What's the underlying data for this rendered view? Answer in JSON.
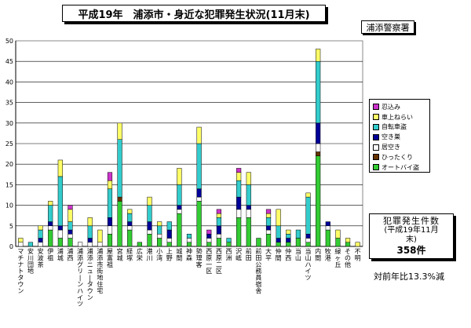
{
  "title": "平成19年　浦添市・身近な犯罪発生状況(11月末)",
  "police_label": "浦添警察署",
  "count_box": {
    "line1": "犯罪発生件数",
    "line2": "(平成19年11月",
    "line3": "末)",
    "line4": "358件"
  },
  "yoy": "対前年比13.3%減",
  "colors": {
    "忍込み": "#cc33cc",
    "車上ねらい": "#ffff66",
    "自転車盗": "#33cccc",
    "空き巣": "#000099",
    "居空き": "#ffffff",
    "ひったくり": "#663300",
    "オートバイ盗": "#33cc33"
  },
  "chart_data": {
    "type": "bar",
    "stacked": true,
    "ylim": [
      0,
      50
    ],
    "yticks": [
      0,
      5,
      10,
      15,
      20,
      25,
      30,
      35,
      40,
      45,
      50
    ],
    "grid": true,
    "legend_position": "right",
    "categories": [
      "マチナトタウン",
      "安川団地",
      "安波茶",
      "伊祖",
      "浦城",
      "浦西",
      "浦添グリーンハイツ",
      "浦添ニュータウン",
      "浦添市街地住宅",
      "屋富祖",
      "宮城",
      "経塚",
      "広栄",
      "港川",
      "小湾",
      "上野",
      "城間",
      "神森",
      "勢理客",
      "西原一区",
      "西原二区",
      "西洲",
      "沢岻",
      "前田",
      "前田公務員宿舎",
      "大平",
      "仲間",
      "仲西",
      "当山",
      "当山ハイツ",
      "内間",
      "牧港",
      "緑ヶ丘",
      "その他",
      "不明"
    ],
    "series": [
      {
        "name": "オートバイ盗",
        "values": [
          0,
          0,
          0,
          4,
          2,
          2,
          0,
          0,
          0,
          3,
          11,
          4,
          1,
          3,
          2,
          1,
          8,
          1,
          11,
          1,
          2,
          1,
          7,
          7,
          2,
          3,
          1,
          1,
          2,
          1,
          22,
          4,
          2,
          1,
          0
        ]
      },
      {
        "name": "ひったくり",
        "values": [
          0,
          0,
          0,
          0,
          0,
          0,
          0,
          0,
          0,
          0,
          1,
          0,
          0,
          0,
          0,
          0,
          0,
          0,
          0,
          0,
          0,
          0,
          0,
          0,
          0,
          0,
          0,
          0,
          0,
          0,
          1,
          0,
          0,
          0,
          0
        ]
      },
      {
        "name": "居空き",
        "values": [
          1,
          0,
          1,
          1,
          2,
          1,
          1,
          1,
          1,
          2,
          0,
          1,
          0,
          1,
          1,
          1,
          1,
          1,
          1,
          1,
          1,
          0,
          2,
          2,
          0,
          1,
          0,
          0,
          0,
          1,
          2,
          1,
          0,
          0,
          0
        ]
      },
      {
        "name": "空き巣",
        "values": [
          0,
          0,
          1,
          1,
          1,
          1,
          0,
          1,
          0,
          2,
          0,
          1,
          0,
          2,
          0,
          2,
          1,
          0,
          2,
          1,
          2,
          0,
          3,
          1,
          0,
          1,
          1,
          1,
          0,
          1,
          5,
          1,
          0,
          0,
          0
        ]
      },
      {
        "name": "自転車盗",
        "values": [
          0,
          1,
          2,
          4,
          12,
          2,
          0,
          3,
          0,
          7,
          14,
          2,
          0,
          4,
          2,
          2,
          5,
          1,
          11,
          0,
          2,
          1,
          4,
          5,
          0,
          2,
          3,
          1,
          2,
          9,
          15,
          0,
          0,
          0,
          0
        ]
      },
      {
        "name": "車上ねらい",
        "values": [
          1,
          0,
          1,
          1,
          4,
          3,
          0,
          2,
          3,
          2,
          4,
          1,
          0,
          2,
          1,
          0,
          4,
          0,
          4,
          0,
          1,
          0,
          2,
          3,
          0,
          1,
          4,
          1,
          0,
          1,
          3,
          0,
          2,
          1,
          1
        ]
      },
      {
        "name": "忍込み",
        "values": [
          0,
          0,
          0,
          0,
          0,
          1,
          0,
          0,
          0,
          2,
          0,
          0,
          0,
          0,
          0,
          0,
          0,
          0,
          0,
          1,
          1,
          0,
          1,
          0,
          0,
          1,
          0,
          0,
          0,
          0,
          0,
          0,
          0,
          0,
          0
        ]
      }
    ],
    "legend_order": [
      "忍込み",
      "車上ねらい",
      "自転車盗",
      "空き巣",
      "居空き",
      "ひったくり",
      "オートバイ盗"
    ]
  }
}
